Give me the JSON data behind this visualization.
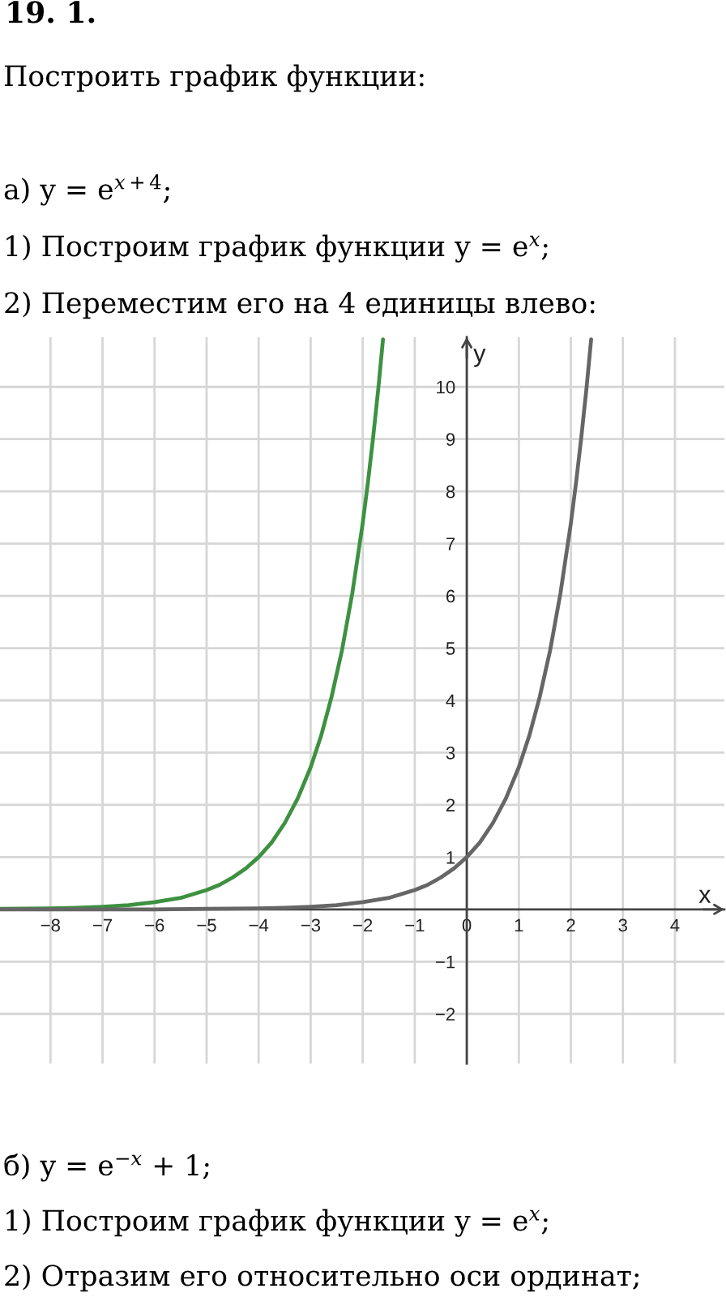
{
  "chart_data": {
    "type": "line",
    "title": "19. 1.",
    "subtitle": "Построить график функции:\n\nа) y = e$^{x+4}$;\n1) Построим график функции y = e$^{x}$;\n2) Переместим его на 4 единицы влево:",
    "annotations": [
      "б) y = e$^{−x}$ + 1;",
      "1) Построим график функции y = e$^{x}$;",
      "2) Отразим его относительно оси ординат;"
    ],
    "xlabel": "x",
    "ylabel": "y",
    "xlim": [
      -8.97,
      4.95
    ],
    "ylim": [
      -2.95,
      10.95
    ],
    "xticks": [
      {
        "value": -8,
        "label": "−8"
      },
      {
        "value": -7,
        "label": "−7"
      },
      {
        "value": -6,
        "label": "−6"
      },
      {
        "value": -5,
        "label": "−5"
      },
      {
        "value": -4,
        "label": "−4"
      },
      {
        "value": -3,
        "label": "−3"
      },
      {
        "value": -2,
        "label": "−2"
      },
      {
        "value": -1,
        "label": "−1"
      },
      0,
      1,
      2,
      3,
      4
    ],
    "yticks": [
      {
        "value": -2,
        "label": "−2"
      },
      {
        "value": -1,
        "label": "−1"
      },
      1,
      2,
      3,
      4,
      5,
      6,
      7,
      8,
      9,
      10
    ],
    "grid": true,
    "series": [
      {
        "color": "#3d9140",
        "x": [
          -8.97,
          -8,
          -7.5,
          -7,
          -6.5,
          -6,
          -5.5,
          -5,
          -4.75,
          -4.5,
          -4.25,
          -4,
          -3.75,
          -3.5,
          -3.25,
          -3,
          -2.8,
          -2.6,
          -2.4,
          -2.2,
          -2,
          -1.9,
          -1.8,
          -1.7,
          -1.61
        ],
        "values": [
          0.01,
          0.02,
          0.03,
          0.05,
          0.08,
          0.14,
          0.22,
          0.37,
          0.47,
          0.61,
          0.78,
          1,
          1.28,
          1.65,
          2.12,
          2.72,
          3.32,
          4.06,
          4.95,
          6.05,
          7.39,
          8.17,
          9.03,
          9.97,
          10.91
        ]
      },
      {
        "color": "#666666",
        "x": [
          -8.97,
          -7,
          -6,
          -5,
          -4,
          -3.5,
          -3,
          -2.5,
          -2,
          -1.5,
          -1,
          -0.75,
          -0.5,
          -0.25,
          0,
          0.25,
          0.5,
          0.75,
          1,
          1.2,
          1.4,
          1.6,
          1.8,
          2,
          2.1,
          2.2,
          2.3,
          2.39
        ],
        "values": [
          0,
          0,
          0,
          0.01,
          0.02,
          0.03,
          0.05,
          0.08,
          0.14,
          0.22,
          0.37,
          0.47,
          0.61,
          0.78,
          1,
          1.28,
          1.65,
          2.12,
          2.72,
          3.32,
          4.06,
          4.95,
          6.05,
          7.39,
          8.17,
          9.03,
          9.97,
          10.91
        ]
      }
    ]
  }
}
